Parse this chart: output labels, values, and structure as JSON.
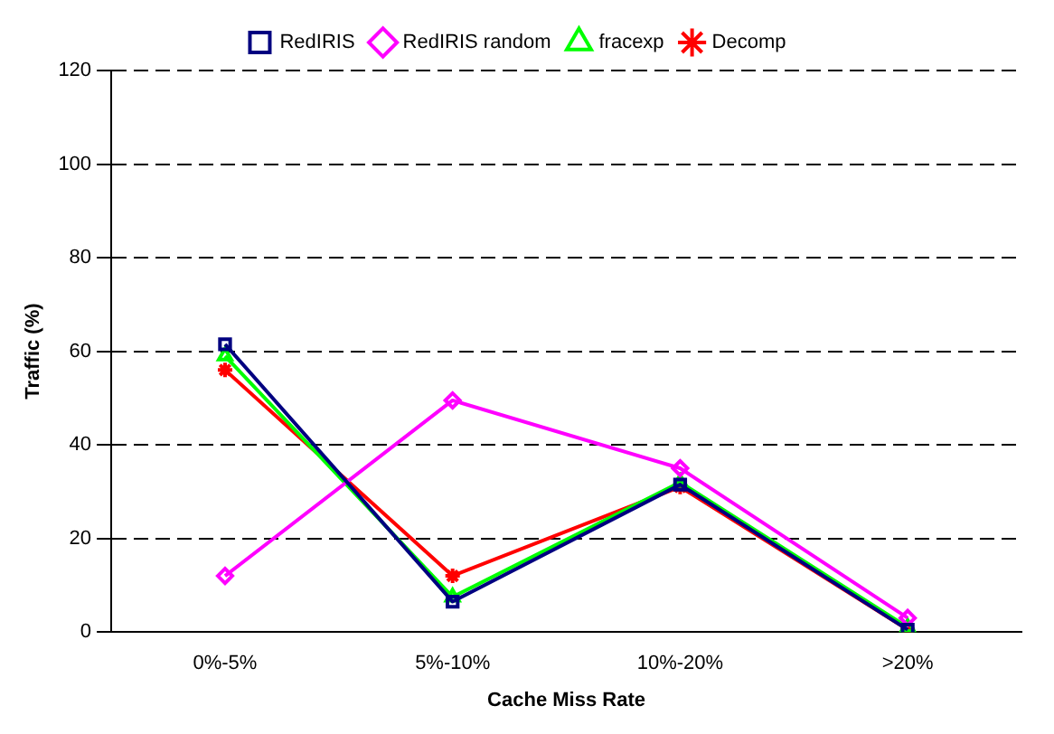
{
  "chart_data": {
    "type": "line",
    "xlabel": "Cache Miss Rate",
    "ylabel": "Traffic (%)",
    "categories": [
      "0%-5%",
      "5%-10%",
      "10%-20%",
      ">20%"
    ],
    "series": [
      {
        "name": "RedIRIS",
        "color": "#000080",
        "marker": "square",
        "values": [
          61.5,
          6.5,
          31.5,
          0.5
        ]
      },
      {
        "name": "RedIRIS random",
        "color": "#ff00ff",
        "marker": "diamond",
        "values": [
          12,
          49.5,
          35,
          3
        ]
      },
      {
        "name": "fracexp",
        "color": "#00ff00",
        "marker": "triangle",
        "values": [
          59,
          7.5,
          32,
          1
        ]
      },
      {
        "name": "Decomp",
        "color": "#ff0000",
        "marker": "cross",
        "values": [
          56,
          12,
          31,
          0.5
        ]
      }
    ],
    "ylim": [
      0,
      120
    ],
    "yticks": [
      0,
      20,
      40,
      60,
      80,
      100,
      120
    ],
    "grid": "y",
    "legend": "top"
  }
}
